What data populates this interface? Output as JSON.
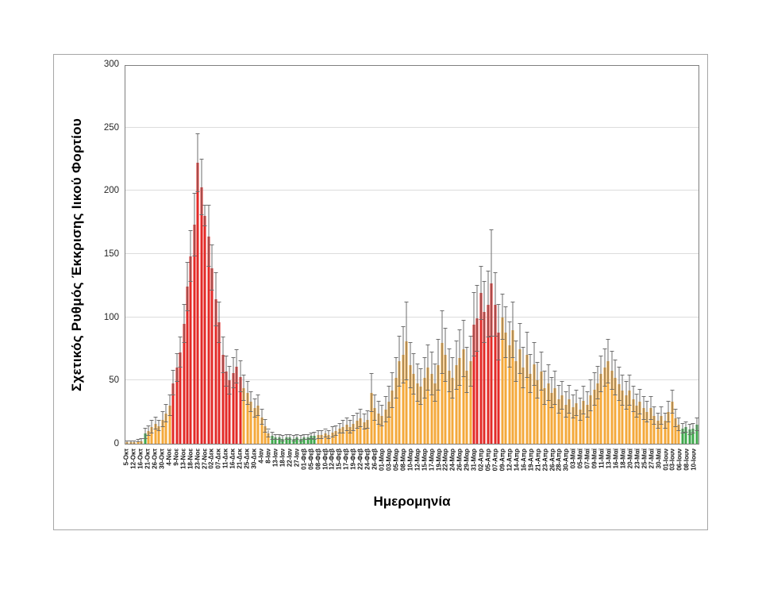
{
  "chart_data": {
    "type": "bar",
    "title": "",
    "xlabel": "Ημερομηνία",
    "ylabel": "Σχετικός Ρυθμός Έκκρισης Ιικού Φορτίου",
    "ylim": [
      0,
      300
    ],
    "yticks": [
      0,
      50,
      100,
      150,
      200,
      250,
      300
    ],
    "grid": true,
    "legend": "none",
    "error_bars": true,
    "label_every_n_bars": 2,
    "bar_colors": {
      "o": "#f4a93b",
      "r": "#e32a27",
      "g": "#3fa84c"
    },
    "error_color": "#6e6e6e",
    "gridline_color": "#dcdcdc",
    "plot_border_color": "#7f7f7f",
    "figure_border_color": "#a6a6a6",
    "x_tick_labels": [
      "5-Οκτ",
      "12-Οκτ",
      "16-Οκτ",
      "21-Οκτ",
      "26-Οκτ",
      "30-Οκτ",
      "4-Νοε",
      "9-Νοε",
      "13-Νοε",
      "18-Νοε",
      "23-Νοε",
      "27-Νοε",
      "02-Δεκ",
      "07-Δεκ",
      "11-Δεκ",
      "16-Δεκ",
      "21-Δεκ",
      "25-Δεκ",
      "30-Δεκ",
      "4-Ιαν",
      "8-Ιαν",
      "13-Ιαν",
      "18-Ιαν",
      "22-Ιαν",
      "27-Ιαν",
      "01-Φεβ",
      "05-Φεβ",
      "08-Φεβ",
      "10-Φεβ",
      "12-Φεβ",
      "15-Φεβ",
      "17-Φεβ",
      "19-Φεβ",
      "22-Φεβ",
      "24-Φεβ",
      "26-Φεβ",
      "01-Μαρ",
      "03-Μαρ",
      "05-Μαρ",
      "08-Μαρ",
      "10-Μαρ",
      "12-Μαρ",
      "15-Μαρ",
      "17-Μαρ",
      "19-Μαρ",
      "22-Μαρ",
      "24-Μαρ",
      "26-Μαρ",
      "29-Μαρ",
      "31-Μαρ",
      "02-Απρ",
      "05-Απρ",
      "07-Απρ",
      "09-Απρ",
      "12-Απρ",
      "14-Απρ",
      "16-Απρ",
      "19-Απρ",
      "21-Απρ",
      "23-Απρ",
      "26-Απρ",
      "28-Απρ",
      "30-Απρ",
      "03-Μαϊ",
      "05-Μαϊ",
      "07-Μαϊ",
      "09-Μαϊ",
      "11-Μαϊ",
      "13-Μαϊ",
      "16-Μαϊ",
      "18-Μαϊ",
      "20-Μαϊ",
      "23-Μαϊ",
      "25-Μαϊ",
      "27-Μαϊ",
      "30-Μαϊ",
      "01-Ιουν",
      "03-Ιουν",
      "06-Ιουν",
      "08-Ιουν",
      "10-Ιουν"
    ],
    "bars": [
      [
        1,
        1,
        "o"
      ],
      [
        1,
        1,
        "o"
      ],
      [
        1,
        1,
        "o"
      ],
      [
        2,
        1,
        "o"
      ],
      [
        2,
        2,
        "o"
      ],
      [
        8,
        4,
        "g"
      ],
      [
        10,
        4,
        "o"
      ],
      [
        13,
        5,
        "o"
      ],
      [
        16,
        5,
        "o"
      ],
      [
        14,
        4,
        "o"
      ],
      [
        19,
        6,
        "o"
      ],
      [
        24,
        7,
        "o"
      ],
      [
        30,
        8,
        "o"
      ],
      [
        48,
        10,
        "r"
      ],
      [
        60,
        11,
        "r"
      ],
      [
        72,
        12,
        "r"
      ],
      [
        95,
        15,
        "r"
      ],
      [
        124,
        19,
        "r"
      ],
      [
        148,
        20,
        "r"
      ],
      [
        173,
        25,
        "r"
      ],
      [
        222,
        23,
        "r"
      ],
      [
        203,
        22,
        "r"
      ],
      [
        180,
        8,
        "r"
      ],
      [
        164,
        24,
        "r"
      ],
      [
        139,
        18,
        "r"
      ],
      [
        114,
        21,
        "r"
      ],
      [
        96,
        16,
        "r"
      ],
      [
        70,
        14,
        "r"
      ],
      [
        57,
        12,
        "r"
      ],
      [
        50,
        11,
        "r"
      ],
      [
        56,
        12,
        "r"
      ],
      [
        61,
        13,
        "r"
      ],
      [
        53,
        12,
        "r"
      ],
      [
        44,
        10,
        "o"
      ],
      [
        40,
        9,
        "o"
      ],
      [
        33,
        8,
        "o"
      ],
      [
        28,
        7,
        "o"
      ],
      [
        30,
        8,
        "o"
      ],
      [
        21,
        6,
        "o"
      ],
      [
        14,
        5,
        "o"
      ],
      [
        8,
        3,
        "o"
      ],
      [
        6,
        3,
        "g"
      ],
      [
        5,
        2,
        "g"
      ],
      [
        5,
        2,
        "g"
      ],
      [
        4,
        2,
        "g"
      ],
      [
        5,
        2,
        "g"
      ],
      [
        5,
        2,
        "g"
      ],
      [
        4,
        2,
        "g"
      ],
      [
        5,
        2,
        "g"
      ],
      [
        4,
        2,
        "g"
      ],
      [
        5,
        2,
        "g"
      ],
      [
        5,
        2,
        "g"
      ],
      [
        6,
        2,
        "g"
      ],
      [
        6,
        3,
        "g"
      ],
      [
        7,
        3,
        "o"
      ],
      [
        7,
        3,
        "o"
      ],
      [
        8,
        3,
        "o"
      ],
      [
        7,
        3,
        "o"
      ],
      [
        9,
        4,
        "o"
      ],
      [
        10,
        4,
        "o"
      ],
      [
        12,
        4,
        "o"
      ],
      [
        13,
        5,
        "o"
      ],
      [
        15,
        5,
        "o"
      ],
      [
        13,
        5,
        "o"
      ],
      [
        16,
        6,
        "o"
      ],
      [
        18,
        6,
        "o"
      ],
      [
        20,
        7,
        "o"
      ],
      [
        17,
        6,
        "o"
      ],
      [
        19,
        7,
        "o"
      ],
      [
        40,
        15,
        "o"
      ],
      [
        28,
        10,
        "o"
      ],
      [
        24,
        9,
        "o"
      ],
      [
        22,
        8,
        "o"
      ],
      [
        27,
        10,
        "o"
      ],
      [
        33,
        12,
        "o"
      ],
      [
        42,
        14,
        "o"
      ],
      [
        52,
        16,
        "o"
      ],
      [
        65,
        20,
        "o"
      ],
      [
        70,
        22,
        "o"
      ],
      [
        81,
        31,
        "o"
      ],
      [
        62,
        18,
        "o"
      ],
      [
        55,
        16,
        "o"
      ],
      [
        48,
        15,
        "o"
      ],
      [
        45,
        14,
        "o"
      ],
      [
        52,
        16,
        "o"
      ],
      [
        60,
        18,
        "o"
      ],
      [
        55,
        17,
        "o"
      ],
      [
        48,
        15,
        "o"
      ],
      [
        62,
        20,
        "o"
      ],
      [
        80,
        25,
        "o"
      ],
      [
        70,
        21,
        "o"
      ],
      [
        58,
        17,
        "o"
      ],
      [
        52,
        16,
        "o"
      ],
      [
        62,
        19,
        "o"
      ],
      [
        68,
        22,
        "o"
      ],
      [
        75,
        22,
        "o"
      ],
      [
        58,
        18,
        "o"
      ],
      [
        65,
        20,
        "o"
      ],
      [
        94,
        25,
        "r"
      ],
      [
        99,
        26,
        "r"
      ],
      [
        119,
        21,
        "r"
      ],
      [
        104,
        24,
        "r"
      ],
      [
        110,
        26,
        "r"
      ],
      [
        127,
        42,
        "r"
      ],
      [
        110,
        25,
        "r"
      ],
      [
        88,
        22,
        "r"
      ],
      [
        100,
        18,
        "o"
      ],
      [
        88,
        20,
        "o"
      ],
      [
        78,
        18,
        "o"
      ],
      [
        90,
        22,
        "o"
      ],
      [
        65,
        16,
        "o"
      ],
      [
        75,
        20,
        "o"
      ],
      [
        60,
        16,
        "o"
      ],
      [
        70,
        18,
        "o"
      ],
      [
        55,
        15,
        "o"
      ],
      [
        63,
        17,
        "o"
      ],
      [
        50,
        14,
        "o"
      ],
      [
        57,
        15,
        "o"
      ],
      [
        44,
        13,
        "o"
      ],
      [
        48,
        14,
        "o"
      ],
      [
        40,
        12,
        "o"
      ],
      [
        44,
        13,
        "o"
      ],
      [
        35,
        11,
        "o"
      ],
      [
        38,
        11,
        "o"
      ],
      [
        31,
        10,
        "o"
      ],
      [
        35,
        11,
        "o"
      ],
      [
        29,
        9,
        "o"
      ],
      [
        32,
        10,
        "o"
      ],
      [
        27,
        9,
        "o"
      ],
      [
        34,
        11,
        "o"
      ],
      [
        31,
        10,
        "o"
      ],
      [
        38,
        12,
        "o"
      ],
      [
        43,
        13,
        "o"
      ],
      [
        48,
        13,
        "o"
      ],
      [
        55,
        14,
        "o"
      ],
      [
        60,
        15,
        "o"
      ],
      [
        65,
        17,
        "o"
      ],
      [
        58,
        15,
        "o"
      ],
      [
        52,
        14,
        "o"
      ],
      [
        47,
        13,
        "o"
      ],
      [
        42,
        12,
        "o"
      ],
      [
        38,
        11,
        "o"
      ],
      [
        42,
        12,
        "o"
      ],
      [
        35,
        10,
        "o"
      ],
      [
        30,
        9,
        "o"
      ],
      [
        33,
        10,
        "o"
      ],
      [
        28,
        9,
        "o"
      ],
      [
        25,
        8,
        "o"
      ],
      [
        28,
        9,
        "o"
      ],
      [
        22,
        7,
        "o"
      ],
      [
        18,
        6,
        "o"
      ],
      [
        22,
        7,
        "o"
      ],
      [
        18,
        6,
        "o"
      ],
      [
        25,
        8,
        "o"
      ],
      [
        33,
        9,
        "o"
      ],
      [
        20,
        7,
        "o"
      ],
      [
        15,
        5,
        "o"
      ],
      [
        12,
        4,
        "g"
      ],
      [
        13,
        4,
        "g"
      ],
      [
        11,
        4,
        "g"
      ],
      [
        12,
        4,
        "g"
      ],
      [
        15,
        5,
        "g"
      ]
    ]
  }
}
